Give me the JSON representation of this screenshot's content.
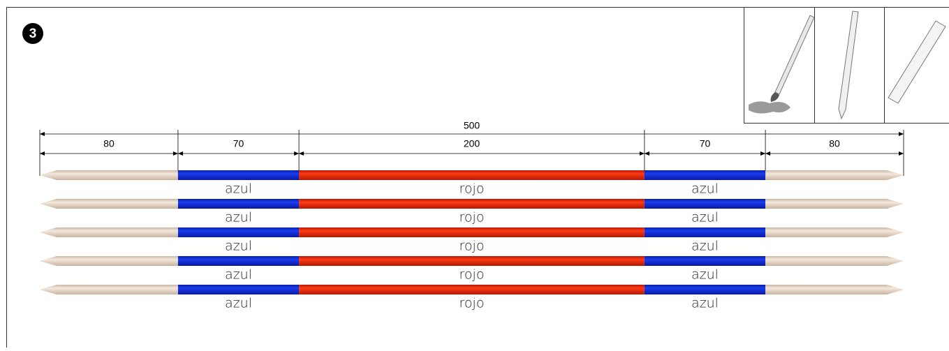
{
  "step": "3",
  "dimensions": {
    "total": 500,
    "parts": [
      80,
      70,
      200,
      70,
      80
    ]
  },
  "sticks": [
    {
      "labels": [
        "azul",
        "rojo",
        "azul"
      ]
    },
    {
      "labels": [
        "azul",
        "rojo",
        "azul"
      ]
    },
    {
      "labels": [
        "azul",
        "rojo",
        "azul"
      ]
    },
    {
      "labels": [
        "azul",
        "rojo",
        "azul"
      ]
    },
    {
      "labels": [
        "azul",
        "rojo",
        "azul"
      ]
    }
  ]
}
